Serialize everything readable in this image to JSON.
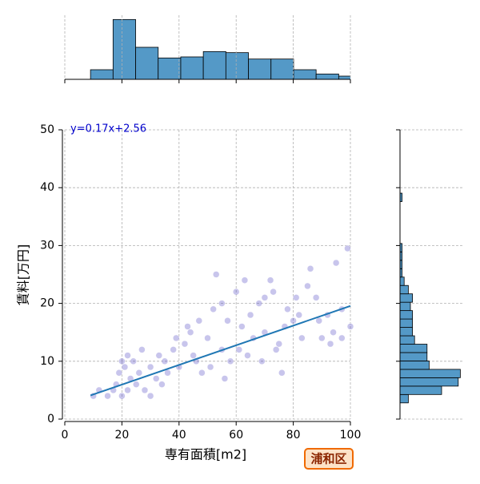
{
  "chart_data": [
    {
      "type": "scatter",
      "xlabel": "専有面積[m2]",
      "ylabel": "賃料[万円]",
      "badge": "浦和区",
      "color": "#4a3fc0",
      "line_color": "#1f77b4",
      "grid": true,
      "xlim": [
        0,
        100
      ],
      "ylim": [
        0,
        50
      ],
      "xticks": [
        0,
        20,
        40,
        60,
        80,
        100
      ],
      "yticks": [
        0,
        10,
        20,
        30,
        40,
        50
      ],
      "x": [
        20,
        22,
        18,
        19,
        21,
        23,
        25,
        24,
        26,
        28,
        30,
        32,
        35,
        38,
        40,
        42,
        45,
        48,
        50,
        52,
        53,
        55,
        57,
        58,
        60,
        62,
        64,
        65,
        68,
        70,
        72,
        73,
        75,
        78,
        80,
        82,
        85,
        88,
        90,
        92,
        95,
        97,
        99,
        100,
        97,
        93,
        15,
        17,
        20,
        22,
        27,
        33,
        36,
        44,
        47,
        51,
        56,
        61,
        66,
        69,
        74,
        77,
        81,
        86,
        12,
        10,
        30,
        34,
        39,
        43,
        46,
        55,
        63,
        70,
        76,
        83,
        89,
        94
      ],
      "y": [
        4,
        5,
        6,
        8,
        9,
        7,
        6,
        10,
        8,
        5,
        9,
        7,
        10,
        12,
        9,
        13,
        11,
        8,
        14,
        19,
        25,
        12,
        17,
        10,
        22,
        16,
        11,
        18,
        20,
        15,
        24,
        22,
        13,
        19,
        17,
        18,
        23,
        21,
        14,
        18,
        27,
        19,
        29.5,
        16,
        14,
        13,
        4,
        5,
        10,
        11,
        12,
        11,
        8,
        15,
        17,
        9,
        7,
        12,
        14,
        10,
        12,
        16,
        21,
        26,
        5,
        4,
        4,
        6,
        14,
        16,
        10,
        20,
        24,
        21,
        8,
        14,
        17,
        15
      ],
      "regression": {
        "label": "y=0.17x+2.56",
        "slope": 0.17,
        "intercept": 2.56,
        "xrange": [
          9,
          100
        ]
      }
    },
    {
      "type": "histogram",
      "orientation": "vertical",
      "color": "#5499c7",
      "bins": [
        9,
        16.9,
        24.8,
        32.7,
        40.6,
        48.5,
        56.4,
        64.3,
        72.2,
        80.1,
        88,
        95.9,
        103.8
      ],
      "values": [
        9,
        56,
        30,
        20,
        21,
        26,
        25,
        19,
        19,
        9,
        5,
        3
      ],
      "xlim": [
        0,
        100
      ],
      "ylim": [
        0,
        60
      ],
      "xticks": [
        0,
        20,
        40,
        60,
        80,
        100
      ]
    },
    {
      "type": "histogram",
      "orientation": "horizontal",
      "color": "#5499c7",
      "bins": [
        2.8,
        4.25,
        5.7,
        7.15,
        8.6,
        10.05,
        11.5,
        12.95,
        14.4,
        15.85,
        17.3,
        18.75,
        20.2,
        21.65,
        23.1,
        24.55,
        26,
        27.45,
        28.9,
        30.35,
        31.8,
        33.25,
        34.7,
        36.15,
        37.6,
        39.05
      ],
      "values": [
        4,
        20,
        28,
        29,
        14,
        13,
        13,
        7,
        6,
        6,
        6,
        5,
        6,
        4,
        2,
        1,
        1,
        1,
        1,
        0,
        0,
        0,
        0,
        0,
        1
      ],
      "xlim": [
        0,
        30
      ],
      "ylim": [
        0,
        50
      ],
      "yticks": [
        0,
        10,
        20,
        30,
        40,
        50
      ]
    }
  ]
}
